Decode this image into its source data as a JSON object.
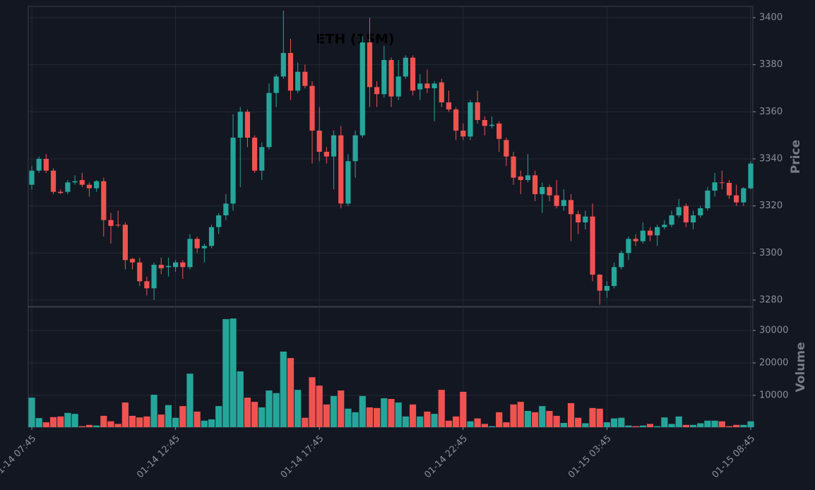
{
  "chart_data": {
    "type": "candlestick",
    "title": "ETH (15M)",
    "ylabel": "Price",
    "volume_label": "Volume",
    "up_color": "#26a69a",
    "down_color": "#ef5350",
    "grid": true,
    "categories": [
      "01-14 07:45",
      null,
      null,
      null,
      null,
      null,
      null,
      null,
      null,
      null,
      null,
      null,
      null,
      null,
      null,
      null,
      null,
      null,
      null,
      null,
      "01-14 12:45",
      null,
      null,
      null,
      null,
      null,
      null,
      null,
      null,
      null,
      null,
      null,
      null,
      null,
      null,
      null,
      null,
      null,
      null,
      null,
      "01-14 17:45",
      null,
      null,
      null,
      null,
      null,
      null,
      null,
      null,
      null,
      null,
      null,
      null,
      null,
      null,
      null,
      null,
      null,
      null,
      null,
      "01-14 22:45",
      null,
      null,
      null,
      null,
      null,
      null,
      null,
      null,
      null,
      null,
      null,
      null,
      null,
      null,
      null,
      null,
      null,
      null,
      null,
      "01-15 03:45",
      null,
      null,
      null,
      null,
      null,
      null,
      null,
      null,
      null,
      null,
      null,
      null,
      null,
      null,
      null,
      null,
      null,
      null,
      null,
      "01-15 08:45"
    ],
    "open": [
      3329,
      3335,
      3340,
      3335,
      3326,
      3326,
      3330,
      3331,
      3329,
      3327.5,
      3330.5,
      3314,
      3312,
      3312,
      3297.5,
      3296,
      3288,
      3285,
      3295,
      3294,
      3294,
      3296,
      3294,
      3306,
      3302,
      3303,
      3311,
      3316,
      3321,
      3349,
      3360,
      3349,
      3335,
      3345,
      3368,
      3375,
      3385,
      3369,
      3377,
      3371,
      3352,
      3343,
      3341,
      3350,
      3321,
      3339,
      3350,
      3389.5,
      3370.5,
      3367.5,
      3382,
      3366.5,
      3375,
      3383,
      3369.5,
      3372,
      3370,
      3372.5,
      3364,
      3361,
      3352,
      3349.5,
      3364,
      3356.5,
      3354,
      3355,
      3348,
      3341,
      3332.5,
      3331,
      3333,
      3325,
      3328,
      3324.5,
      3320,
      3322.5,
      3316.5,
      3313,
      3315.5,
      3290.8,
      3284,
      3286,
      3294,
      3300,
      3306,
      3305,
      3309.5,
      3307.5,
      3311,
      3312,
      3316,
      3320,
      3313,
      3316,
      3319,
      3326.5,
      3330,
      3329.8,
      3324.5,
      3321.5,
      3327.5
    ],
    "high": [
      3337,
      3341,
      3342,
      3336,
      3327,
      3331,
      3333,
      3334,
      3330,
      3331,
      3332,
      3317,
      3318,
      3313,
      3298,
      3298,
      3290,
      3296,
      3298,
      3298,
      3297,
      3297,
      3308,
      3307,
      3304,
      3312,
      3317,
      3325,
      3359,
      3362,
      3361,
      3350,
      3347,
      3372,
      3376,
      3403,
      3391,
      3381,
      3380,
      3373,
      3362,
      3345,
      3352,
      3354,
      3342,
      3352,
      3392,
      3400,
      3373,
      3388,
      3383,
      3382,
      3384,
      3384,
      3376,
      3378,
      3373,
      3374,
      3369,
      3362,
      3355,
      3365,
      3369,
      3358,
      3358,
      3356,
      3349,
      3343,
      3335,
      3342,
      3335,
      3330,
      3329,
      3331,
      3327,
      3325,
      3318,
      3318,
      3321,
      3291,
      3288,
      3296,
      3301,
      3307,
      3308,
      3313,
      3311,
      3312,
      3314,
      3318,
      3323,
      3321,
      3318,
      3320,
      3328,
      3334,
      3335,
      3331,
      3329,
      3328,
      3339
    ],
    "low": [
      3327,
      3334,
      3334,
      3325,
      3325,
      3325,
      3329,
      3328,
      3324,
      3326,
      3307,
      3304,
      3311,
      3293,
      3293,
      3286,
      3282,
      3280,
      3291,
      3290,
      3292,
      3289,
      3293,
      3300,
      3296,
      3302,
      3308,
      3314,
      3318,
      3328,
      3345,
      3334,
      3331,
      3344,
      3362,
      3374,
      3365,
      3368,
      3370,
      3338,
      3339,
      3338,
      3327,
      3319,
      3320,
      3332,
      3349,
      3362,
      3362,
      3366,
      3362,
      3365,
      3374,
      3367,
      3365,
      3368,
      3356,
      3362,
      3360,
      3348,
      3348,
      3348,
      3355,
      3350,
      3353,
      3343,
      3337,
      3329,
      3325,
      3330,
      3322,
      3317,
      3322,
      3319,
      3318,
      3305,
      3308,
      3310,
      3288,
      3278,
      3281,
      3285,
      3293,
      3297,
      3303,
      3304,
      3305,
      3303,
      3310,
      3311,
      3315,
      3311,
      3310,
      3315,
      3318,
      3324,
      3327,
      3323,
      3320,
      3320,
      3327
    ],
    "close": [
      3335,
      3340,
      3335,
      3326,
      3325.5,
      3330,
      3330.5,
      3329,
      3327.5,
      3330.5,
      3314,
      3311.5,
      3311.8,
      3297,
      3296,
      3288,
      3285,
      3295,
      3293.5,
      3294.5,
      3296,
      3294,
      3306,
      3302,
      3303,
      3311,
      3316,
      3321,
      3349,
      3360,
      3349,
      3335,
      3345,
      3368,
      3375,
      3385,
      3369,
      3377,
      3371,
      3352,
      3343,
      3341,
      3350,
      3321,
      3339,
      3350,
      3389.5,
      3370.5,
      3367.5,
      3382,
      3366.5,
      3375,
      3383,
      3369,
      3372,
      3370,
      3372,
      3364,
      3361,
      3352,
      3349.5,
      3364,
      3356.5,
      3354,
      3354.5,
      3348.5,
      3341,
      3332,
      3331,
      3333,
      3325,
      3328,
      3324.5,
      3320,
      3322.5,
      3316.5,
      3313,
      3315.5,
      3290.8,
      3284,
      3286,
      3294,
      3300,
      3306,
      3305,
      3309.5,
      3307.5,
      3311,
      3312,
      3316,
      3319.5,
      3313,
      3316,
      3319,
      3326.5,
      3330,
      3329.8,
      3324.5,
      3321.5,
      3327.5,
      3338
    ],
    "volume": [
      9300,
      3000,
      1700,
      3300,
      3500,
      4600,
      4300,
      500,
      900,
      700,
      3700,
      2000,
      1200,
      7800,
      3700,
      3200,
      3500,
      10200,
      4100,
      7000,
      3100,
      6700,
      16700,
      5000,
      2200,
      2600,
      6700,
      33500,
      33700,
      17400,
      9300,
      8000,
      6300,
      11500,
      10700,
      23500,
      21500,
      11700,
      3100,
      15600,
      13000,
      7200,
      9800,
      11500,
      5900,
      4800,
      9800,
      6300,
      6100,
      9100,
      8900,
      7800,
      3500,
      7200,
      3500,
      5000,
      4300,
      11700,
      2200,
      3500,
      11100,
      2000,
      2900,
      1200,
      500,
      4800,
      1700,
      7200,
      8000,
      5200,
      4800,
      6700,
      5200,
      3700,
      1500,
      7600,
      3100,
      1400,
      6100,
      5900,
      1700,
      2900,
      3100,
      700,
      500,
      700,
      1200,
      500,
      3200,
      1200,
      3500,
      900,
      900,
      1400,
      2200,
      2200,
      2000,
      500,
      900,
      900,
      2000
    ],
    "ylim": [
      3277.3,
      3404.8
    ],
    "yticks": [
      3280,
      3300,
      3320,
      3340,
      3360,
      3380,
      3400
    ],
    "volume_ylim": [
      200,
      37200
    ],
    "volume_yticks": [
      10000,
      20000,
      30000
    ]
  }
}
